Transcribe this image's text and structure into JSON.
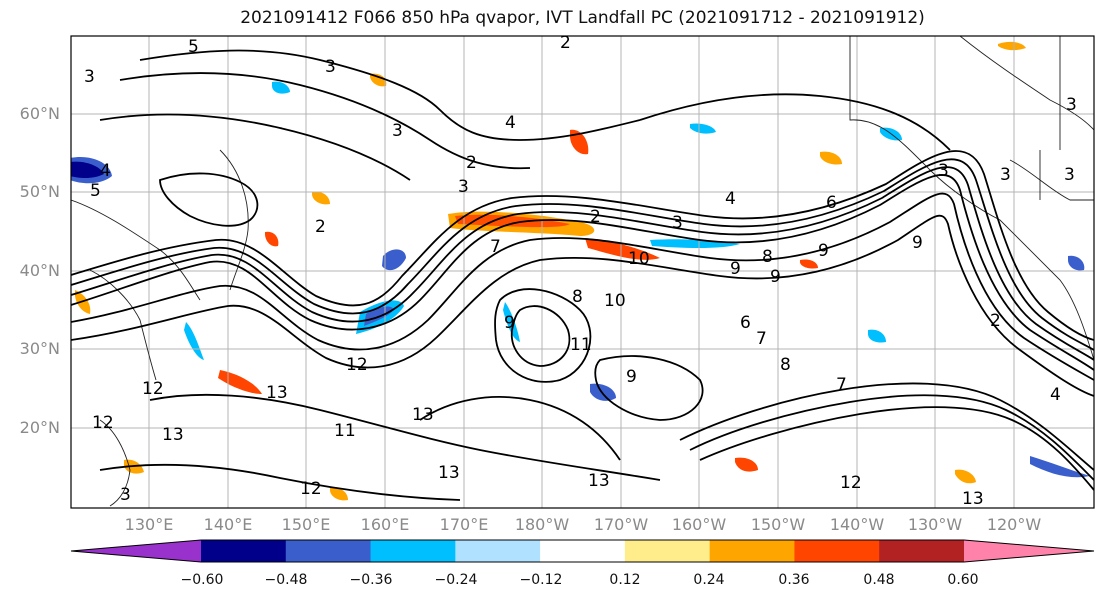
{
  "title": "2021091412 F066 850 hPa qvapor, IVT Landfall PC (2021091712 - 2021091912)",
  "map": {
    "lat_ticks": [
      "60°N",
      "50°N",
      "40°N",
      "30°N",
      "20°N"
    ],
    "lon_ticks": [
      "130°E",
      "140°E",
      "150°E",
      "160°E",
      "170°E",
      "180°W",
      "170°W",
      "160°W",
      "150°W",
      "140°W",
      "130°W",
      "120°W"
    ],
    "contour_labels": [
      "2",
      "3",
      "4",
      "5",
      "6",
      "7",
      "8",
      "9",
      "10",
      "11",
      "12",
      "13"
    ]
  },
  "colorbar": {
    "ticks": [
      "−0.60",
      "−0.48",
      "−0.36",
      "−0.24",
      "−0.12",
      "0.12",
      "0.24",
      "0.36",
      "0.48",
      "0.60"
    ],
    "colors": [
      "#9932cc",
      "#00008b",
      "#3a5fcd",
      "#00bfff",
      "#b0e2ff",
      "#ffffff",
      "#ffec8b",
      "#ffa500",
      "#ff4500",
      "#b22222",
      "#ff82ab"
    ]
  }
}
